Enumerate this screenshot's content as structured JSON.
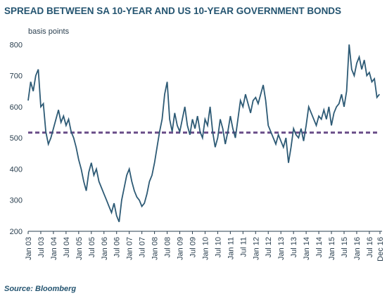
{
  "chart_data": {
    "type": "line",
    "title": "SPREAD BETWEEN SA 10-YEAR AND US 10-YEAR GOVERNMENT BONDS",
    "y_label": "basis points",
    "source": "Source: Bloomberg",
    "x": [
      2003,
      2003.1,
      2003.2,
      2003.3,
      2003.4,
      2003.5,
      2003.6,
      2003.7,
      2003.8,
      2003.9,
      2004,
      2004.1,
      2004.2,
      2004.3,
      2004.4,
      2004.5,
      2004.6,
      2004.7,
      2004.8,
      2004.9,
      2005,
      2005.1,
      2005.2,
      2005.3,
      2005.4,
      2005.5,
      2005.6,
      2005.7,
      2005.8,
      2005.9,
      2006,
      2006.1,
      2006.2,
      2006.3,
      2006.4,
      2006.5,
      2006.6,
      2006.7,
      2006.8,
      2006.9,
      2007,
      2007.1,
      2007.2,
      2007.3,
      2007.4,
      2007.5,
      2007.6,
      2007.7,
      2007.8,
      2007.9,
      2008,
      2008.1,
      2008.2,
      2008.3,
      2008.4,
      2008.5,
      2008.6,
      2008.7,
      2008.8,
      2008.9,
      2009,
      2009.1,
      2009.2,
      2009.3,
      2009.4,
      2009.5,
      2009.6,
      2009.7,
      2009.8,
      2009.9,
      2010,
      2010.1,
      2010.2,
      2010.3,
      2010.4,
      2010.5,
      2010.6,
      2010.7,
      2010.8,
      2010.9,
      2011,
      2011.1,
      2011.2,
      2011.3,
      2011.4,
      2011.5,
      2011.6,
      2011.7,
      2011.8,
      2011.9,
      2012,
      2012.1,
      2012.2,
      2012.3,
      2012.4,
      2012.5,
      2012.6,
      2012.7,
      2012.8,
      2012.9,
      2013,
      2013.1,
      2013.2,
      2013.3,
      2013.4,
      2013.5,
      2013.6,
      2013.7,
      2013.8,
      2013.9,
      2014,
      2014.1,
      2014.2,
      2014.3,
      2014.4,
      2014.5,
      2014.6,
      2014.7,
      2014.8,
      2014.9,
      2015,
      2015.1,
      2015.2,
      2015.3,
      2015.4,
      2015.5,
      2015.6,
      2015.7,
      2015.8,
      2015.9,
      2016,
      2016.1,
      2016.2,
      2016.3,
      2016.4,
      2016.5,
      2016.6,
      2016.7,
      2016.8,
      2016.9
    ],
    "series": [
      {
        "color": "#2d5a75",
        "values": [
          620,
          680,
          650,
          700,
          720,
          600,
          610,
          520,
          480,
          500,
          530,
          560,
          590,
          550,
          570,
          540,
          560,
          520,
          500,
          470,
          430,
          400,
          360,
          330,
          390,
          420,
          380,
          400,
          360,
          340,
          320,
          300,
          280,
          260,
          290,
          250,
          230,
          300,
          340,
          380,
          400,
          360,
          330,
          310,
          300,
          280,
          290,
          320,
          360,
          380,
          420,
          470,
          520,
          560,
          640,
          680,
          560,
          520,
          580,
          540,
          520,
          560,
          600,
          540,
          510,
          560,
          530,
          570,
          520,
          500,
          560,
          540,
          600,
          520,
          470,
          500,
          560,
          530,
          480,
          520,
          570,
          530,
          500,
          560,
          620,
          600,
          640,
          610,
          580,
          620,
          630,
          610,
          640,
          670,
          620,
          540,
          520,
          500,
          480,
          510,
          490,
          470,
          500,
          420,
          470,
          530,
          510,
          500,
          530,
          490,
          540,
          600,
          580,
          560,
          540,
          570,
          560,
          590,
          560,
          600,
          540,
          580,
          600,
          610,
          640,
          600,
          650,
          800,
          720,
          700,
          740,
          760,
          720,
          750,
          700,
          710,
          680,
          690,
          630,
          640
        ]
      }
    ],
    "reference_line": {
      "value": 517,
      "color": "#6b4f8a",
      "dashed": true
    },
    "xlim": [
      2003,
      2016.92
    ],
    "xticks": [
      {
        "value": 2003,
        "label": "Jan 03"
      },
      {
        "value": 2003.5,
        "label": "Jul 03"
      },
      {
        "value": 2004,
        "label": "Jan 04"
      },
      {
        "value": 2004.5,
        "label": "Jul 04"
      },
      {
        "value": 2005,
        "label": "Jan 05"
      },
      {
        "value": 2005.5,
        "label": "Jul 05"
      },
      {
        "value": 2006,
        "label": "Jan 06"
      },
      {
        "value": 2006.5,
        "label": "Jul 06"
      },
      {
        "value": 2007,
        "label": "Jan 07"
      },
      {
        "value": 2007.5,
        "label": "Jul 07"
      },
      {
        "value": 2008,
        "label": "Jan 08"
      },
      {
        "value": 2008.5,
        "label": "Jul 08"
      },
      {
        "value": 2009,
        "label": "Jan 09"
      },
      {
        "value": 2009.5,
        "label": "Jul 09"
      },
      {
        "value": 2010,
        "label": "Jan 10"
      },
      {
        "value": 2010.5,
        "label": "Jul 10"
      },
      {
        "value": 2011,
        "label": "Jan 11"
      },
      {
        "value": 2011.5,
        "label": "Jul 11"
      },
      {
        "value": 2012,
        "label": "Jan 12"
      },
      {
        "value": 2012.5,
        "label": "Jul 12"
      },
      {
        "value": 2013,
        "label": "Jan 13"
      },
      {
        "value": 2013.5,
        "label": "Jul 13"
      },
      {
        "value": 2014,
        "label": "Jan 14"
      },
      {
        "value": 2014.5,
        "label": "Jul 14"
      },
      {
        "value": 2015,
        "label": "Jan 15"
      },
      {
        "value": 2015.5,
        "label": "Jul 15"
      },
      {
        "value": 2016,
        "label": "Jan 16"
      },
      {
        "value": 2016.5,
        "label": "Jul 16"
      },
      {
        "value": 2016.92,
        "label": "Dec 16"
      }
    ],
    "ylim": [
      200,
      830
    ],
    "yticks": [
      200,
      300,
      400,
      500,
      600,
      700,
      800
    ]
  }
}
